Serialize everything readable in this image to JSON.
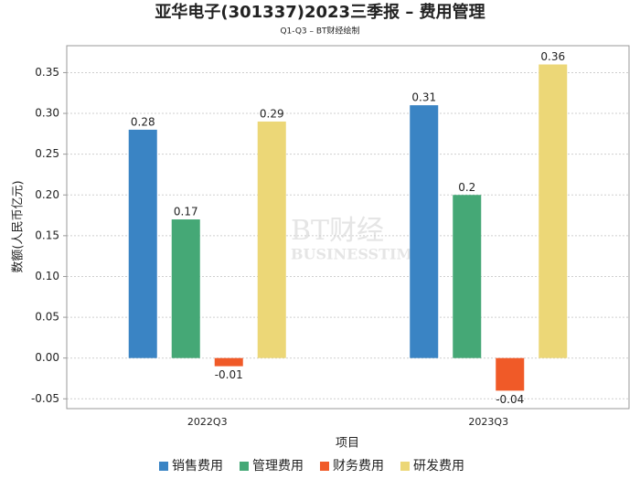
{
  "chart_data": {
    "type": "bar",
    "title": "亚华电子(301337)2023三季报 – 费用管理",
    "subtitle": "Q1-Q3 – BT财经绘制",
    "x_label": "项目",
    "y_label": "数额(人民币亿元)",
    "watermark": [
      "BT财经",
      "BUSINESSTIMES"
    ],
    "categories": [
      "2022Q3",
      "2023Q3"
    ],
    "series": [
      {
        "name": "销售费用",
        "color": "#3a84c4",
        "values": [
          0.28,
          0.31
        ]
      },
      {
        "name": "管理费用",
        "color": "#45a876",
        "values": [
          0.17,
          0.2
        ]
      },
      {
        "name": "财务费用",
        "color": "#f05a28",
        "values": [
          -0.01,
          -0.04
        ]
      },
      {
        "name": "研发费用",
        "color": "#ecd777",
        "values": [
          0.29,
          0.36
        ]
      }
    ],
    "ylim": [
      -0.062,
      0.383
    ],
    "yticks": [
      {
        "value": -0.05,
        "label": "-0.05"
      },
      {
        "value": 0,
        "label": "0.00"
      },
      0.05,
      {
        "value": 0.1,
        "label": "0.10"
      },
      0.15,
      {
        "value": 0.2,
        "label": "0.20"
      },
      0.25,
      {
        "value": 0.3,
        "label": "0.30"
      },
      0.35
    ],
    "grid": true,
    "legend": "bottom"
  }
}
